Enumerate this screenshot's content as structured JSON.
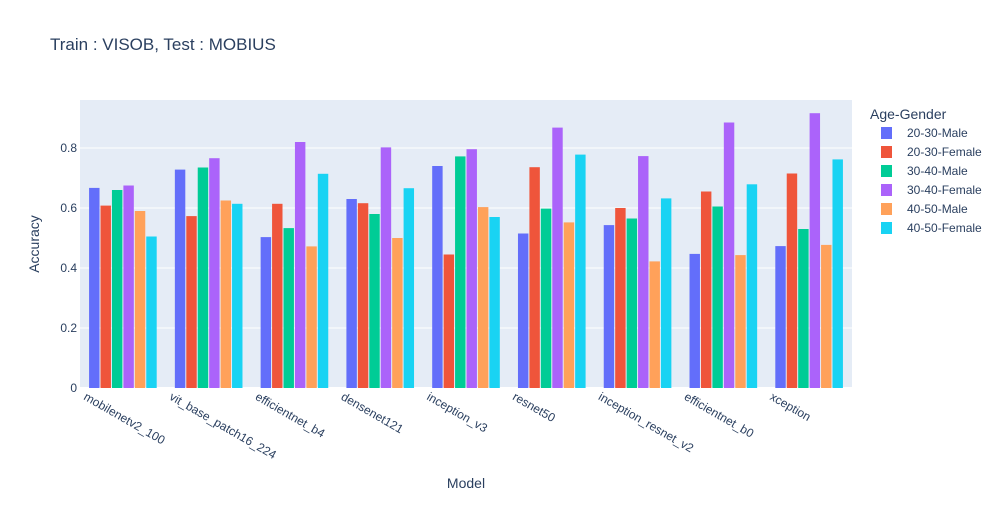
{
  "chart_data": {
    "type": "bar",
    "title": "Train : VISOB, Test : MOBIUS",
    "xlabel": "Model",
    "ylabel": "Accuracy",
    "ylim": [
      0,
      0.96
    ],
    "yticks": [
      0,
      0.2,
      0.4,
      0.6,
      0.8
    ],
    "ytick_labels": [
      "0",
      "0.2",
      "0.4",
      "0.6",
      "0.8"
    ],
    "grid": true,
    "legend": {
      "title": "Age-Gender",
      "placement": "right"
    },
    "categories": [
      "mobilenetv2_100",
      "vit_base_patch16_224",
      "efficientnet_b4",
      "densenet121",
      "inception_v3",
      "resnet50",
      "inception_resnet_v2",
      "efficientnet_b0",
      "xception"
    ],
    "series": [
      {
        "name": "20-30-Male",
        "color": "#636efa",
        "values": [
          0.667,
          0.728,
          0.503,
          0.63,
          0.74,
          0.515,
          0.543,
          0.447,
          0.473
        ]
      },
      {
        "name": "20-30-Female",
        "color": "#ef553b",
        "values": [
          0.608,
          0.573,
          0.614,
          0.616,
          0.445,
          0.736,
          0.6,
          0.655,
          0.715
        ]
      },
      {
        "name": "30-40-Male",
        "color": "#00cc96",
        "values": [
          0.66,
          0.735,
          0.533,
          0.58,
          0.772,
          0.598,
          0.565,
          0.605,
          0.53
        ]
      },
      {
        "name": "30-40-Female",
        "color": "#ab63fa",
        "values": [
          0.675,
          0.766,
          0.82,
          0.802,
          0.796,
          0.868,
          0.773,
          0.885,
          0.916
        ]
      },
      {
        "name": "40-50-Male",
        "color": "#ffa15a",
        "values": [
          0.59,
          0.625,
          0.472,
          0.5,
          0.603,
          0.552,
          0.422,
          0.443,
          0.477
        ]
      },
      {
        "name": "40-50-Female",
        "color": "#19d3f3",
        "values": [
          0.505,
          0.614,
          0.714,
          0.666,
          0.57,
          0.778,
          0.632,
          0.679,
          0.762
        ]
      }
    ]
  }
}
